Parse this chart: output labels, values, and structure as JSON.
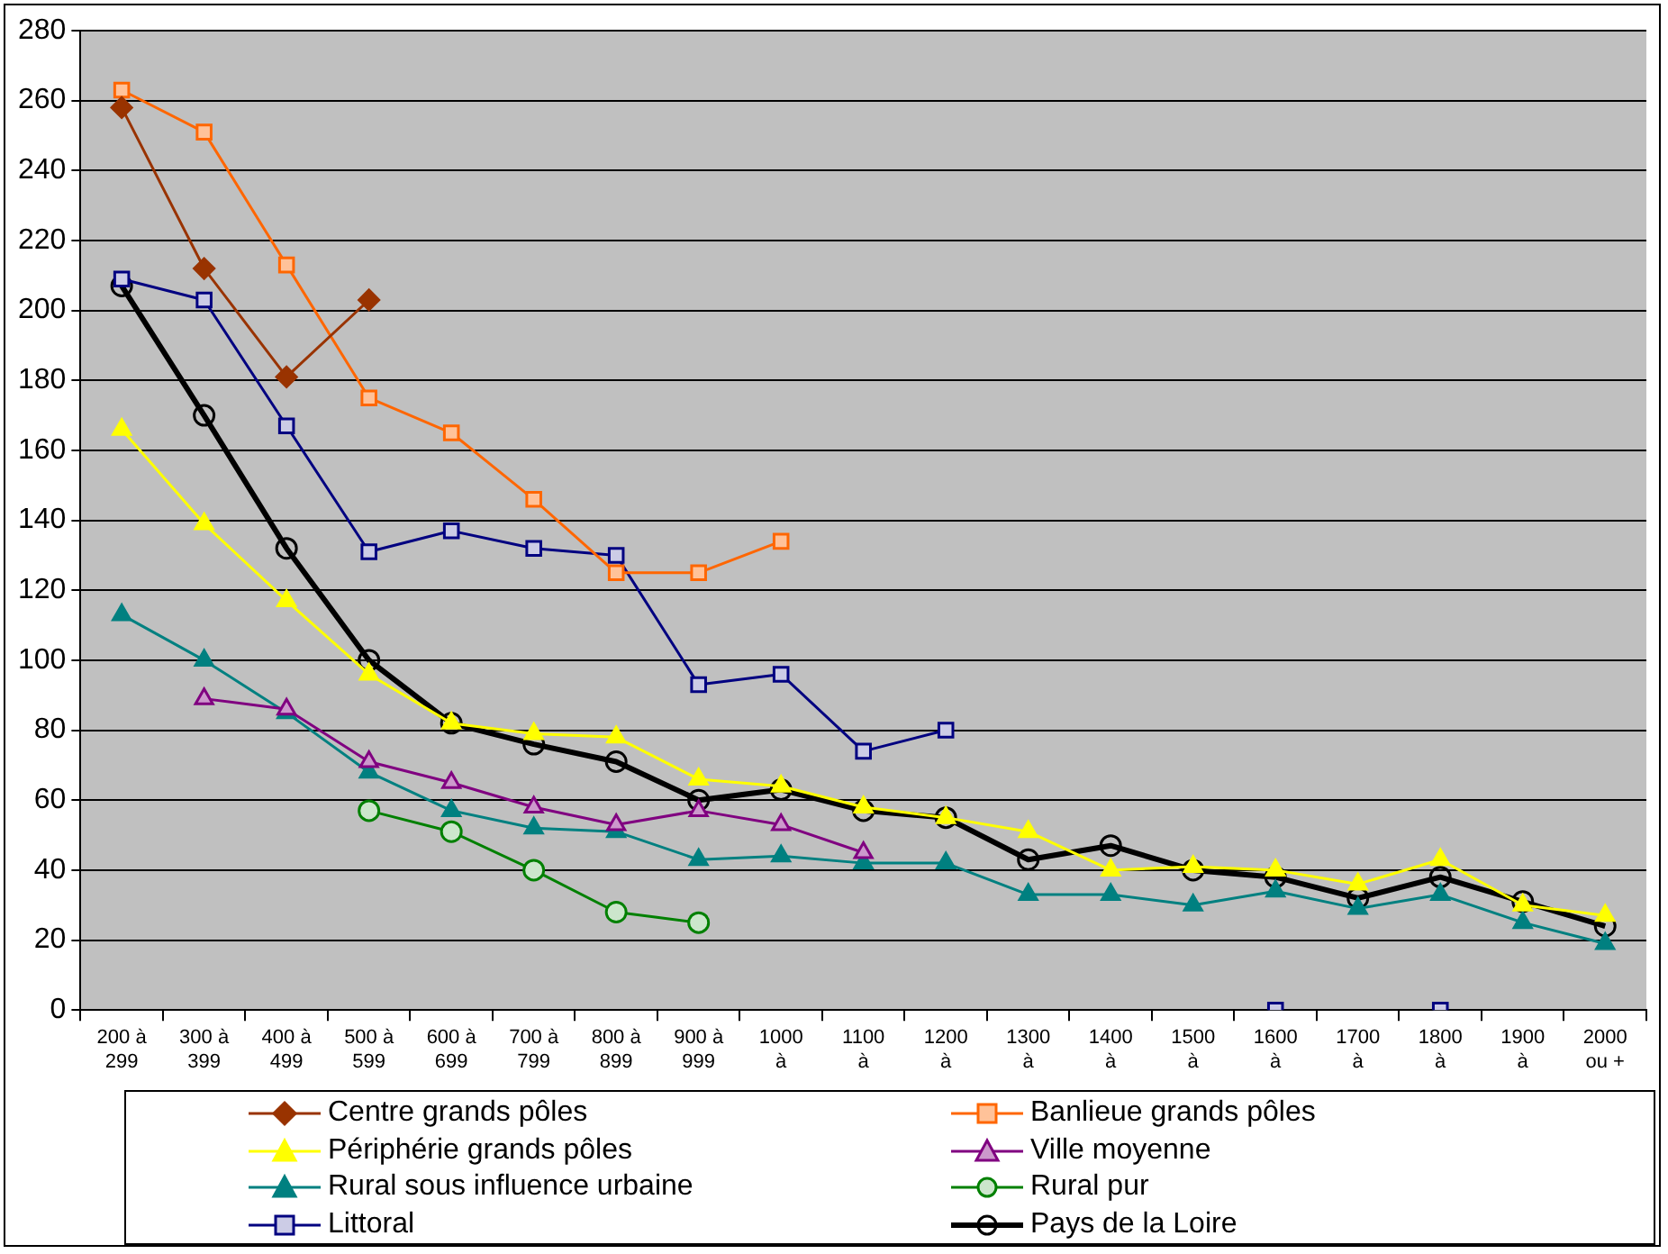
{
  "chart_data": {
    "type": "line",
    "categories": [
      "200 à\n299",
      "300 à\n399",
      "400 à\n499",
      "500 à\n599",
      "600 à\n699",
      "700 à\n799",
      "800 à\n899",
      "900 à\n999",
      "1000\nà",
      "1100\nà",
      "1200\nà",
      "1300\nà",
      "1400\nà",
      "1500\nà",
      "1600\nà",
      "1700\nà",
      "1800\nà",
      "1900\nà",
      "2000\nou +"
    ],
    "series": [
      {
        "name": "Centre grands pôles",
        "color": "#993300",
        "marker": "diamond",
        "values": [
          258,
          212,
          181,
          203,
          null,
          null,
          null,
          null,
          null,
          null,
          null,
          null,
          null,
          null,
          null,
          null,
          null,
          null,
          null
        ]
      },
      {
        "name": "Banlieue grands pôles",
        "color": "#ff6600",
        "marker": "square",
        "values": [
          263,
          251,
          213,
          175,
          165,
          146,
          125,
          125,
          134,
          null,
          null,
          null,
          null,
          null,
          null,
          null,
          null,
          null,
          null
        ]
      },
      {
        "name": "Périphérie grands pôles",
        "color": "#ffff00",
        "marker": "triangle",
        "values": [
          166,
          139,
          117,
          96,
          82,
          79,
          78,
          66,
          64,
          58,
          55,
          51,
          40,
          41,
          40,
          36,
          43,
          30,
          27
        ]
      },
      {
        "name": "Ville moyenne",
        "color": "#800080",
        "marker": "triangle",
        "values": [
          null,
          89,
          86,
          71,
          65,
          58,
          53,
          57,
          53,
          45,
          null,
          null,
          null,
          null,
          null,
          null,
          null,
          null,
          null
        ]
      },
      {
        "name": "Rural sous influence urbaine",
        "color": "#008080",
        "marker": "triangle",
        "values": [
          113,
          100,
          85,
          68,
          57,
          52,
          51,
          43,
          44,
          42,
          42,
          33,
          33,
          30,
          34,
          29,
          33,
          25,
          19
        ]
      },
      {
        "name": "Rural pur",
        "color": "#008000",
        "marker": "circle",
        "values": [
          null,
          null,
          null,
          57,
          51,
          40,
          28,
          25,
          null,
          null,
          null,
          null,
          null,
          null,
          null,
          null,
          null,
          null,
          null
        ]
      },
      {
        "name": "Littoral",
        "color": "#000080",
        "marker": "square",
        "values": [
          209,
          203,
          167,
          131,
          137,
          132,
          130,
          93,
          96,
          74,
          80,
          null,
          null,
          null,
          0,
          null,
          0,
          null,
          null
        ]
      },
      {
        "name": "Pays de la Loire",
        "color": "#000000",
        "marker": "circle",
        "values": [
          207,
          170,
          132,
          100,
          82,
          76,
          71,
          60,
          63,
          57,
          55,
          43,
          47,
          40,
          38,
          32,
          38,
          31,
          24
        ]
      }
    ],
    "ylim": [
      0,
      280
    ],
    "yticks": [
      0,
      20,
      40,
      60,
      80,
      100,
      120,
      140,
      160,
      180,
      200,
      220,
      240,
      260,
      280
    ],
    "grid": "y",
    "legend": "bottom",
    "line_style": "solid"
  }
}
